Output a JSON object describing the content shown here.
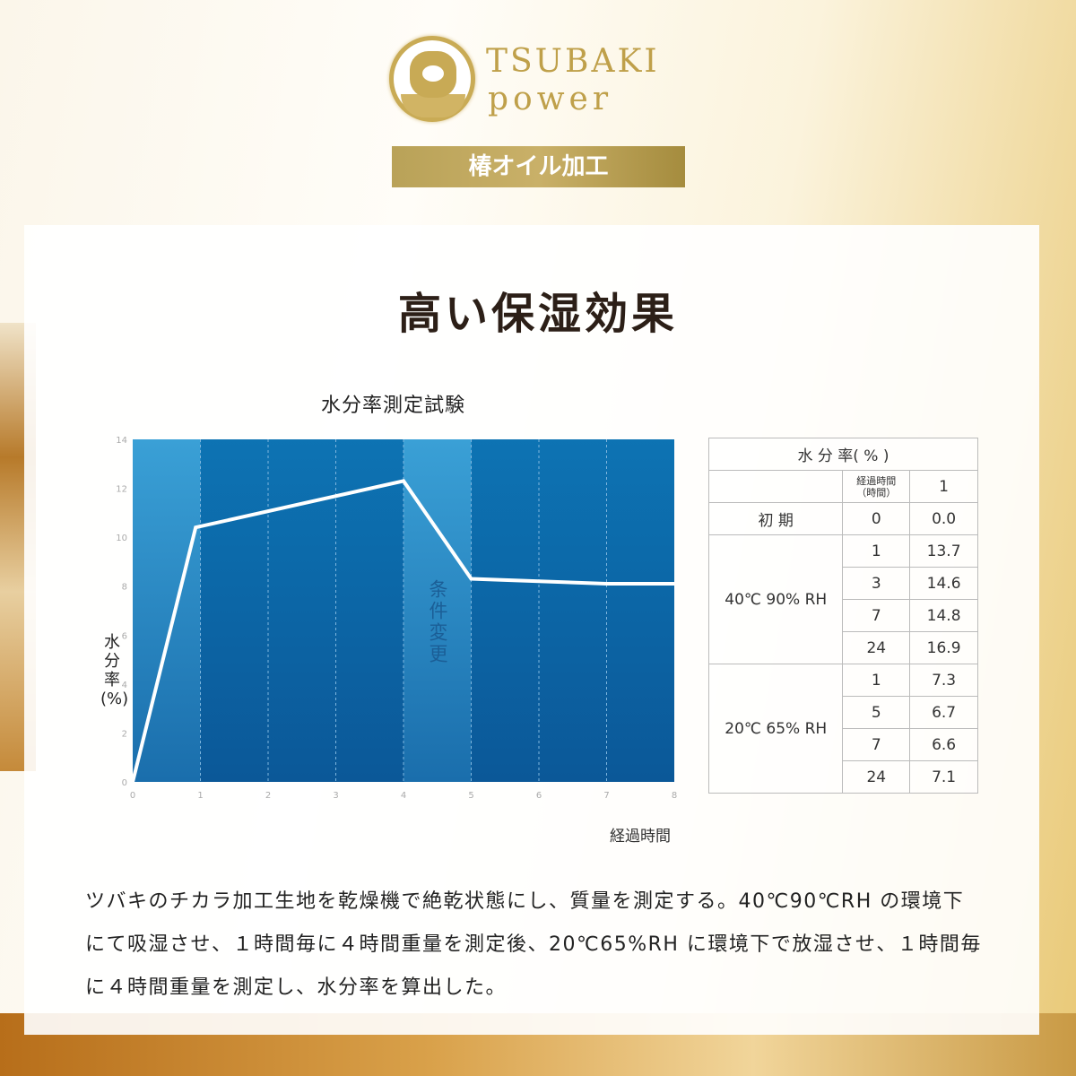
{
  "brand": {
    "line1": "TSUBAKI",
    "line2": "power",
    "banner": "椿オイル加工"
  },
  "title": "高い保湿効果",
  "chart_data": {
    "type": "line",
    "title": "水分率測定試験",
    "xlabel": "経過時間",
    "ylabel": "水分率(%)",
    "xlim": [
      0,
      8
    ],
    "ylim": [
      0,
      14
    ],
    "xticks": [
      "0",
      "1",
      "2",
      "3",
      "4",
      "5",
      "6",
      "7",
      "8"
    ],
    "yticks": [
      "0",
      "2",
      "4",
      "6",
      "8",
      "10",
      "12",
      "14"
    ],
    "annotation": "条件変更",
    "x": [
      0,
      0.93,
      4,
      5,
      6,
      7,
      8
    ],
    "y": [
      0,
      10.4,
      12.3,
      8.3,
      8.2,
      8.1,
      8.1
    ],
    "grid": true
  },
  "table": {
    "header": "水 分 率( % )",
    "sub_header_time": "経過時間",
    "sub_header_unit": "（時間）",
    "sub_header_value": "1",
    "rows": [
      {
        "cond": "初 期",
        "time": "0",
        "value": "0.0"
      },
      {
        "cond": "40℃ 90% RH",
        "time": "1",
        "value": "13.7"
      },
      {
        "time": "3",
        "value": "14.6"
      },
      {
        "time": "7",
        "value": "14.8"
      },
      {
        "time": "24",
        "value": "16.9"
      },
      {
        "cond": "20℃ 65% RH",
        "time": "1",
        "value": "7.3"
      },
      {
        "time": "5",
        "value": "6.7"
      },
      {
        "time": "7",
        "value": "6.6"
      },
      {
        "time": "24",
        "value": "7.1"
      }
    ]
  },
  "description": "ツバキのチカラ加工生地を乾燥機で絶乾状態にし、質量を測定する。40℃90℃RH の環境下にて吸湿させ、１時間毎に４時間重量を測定後、20℃65%RH に環境下で放湿させ、１時間毎に４時間重量を測定し、水分率を算出した。",
  "colors": {
    "gold": "#c9ab55",
    "chart_dark": "#0e5f9e",
    "chart_light": "#3397cf"
  }
}
